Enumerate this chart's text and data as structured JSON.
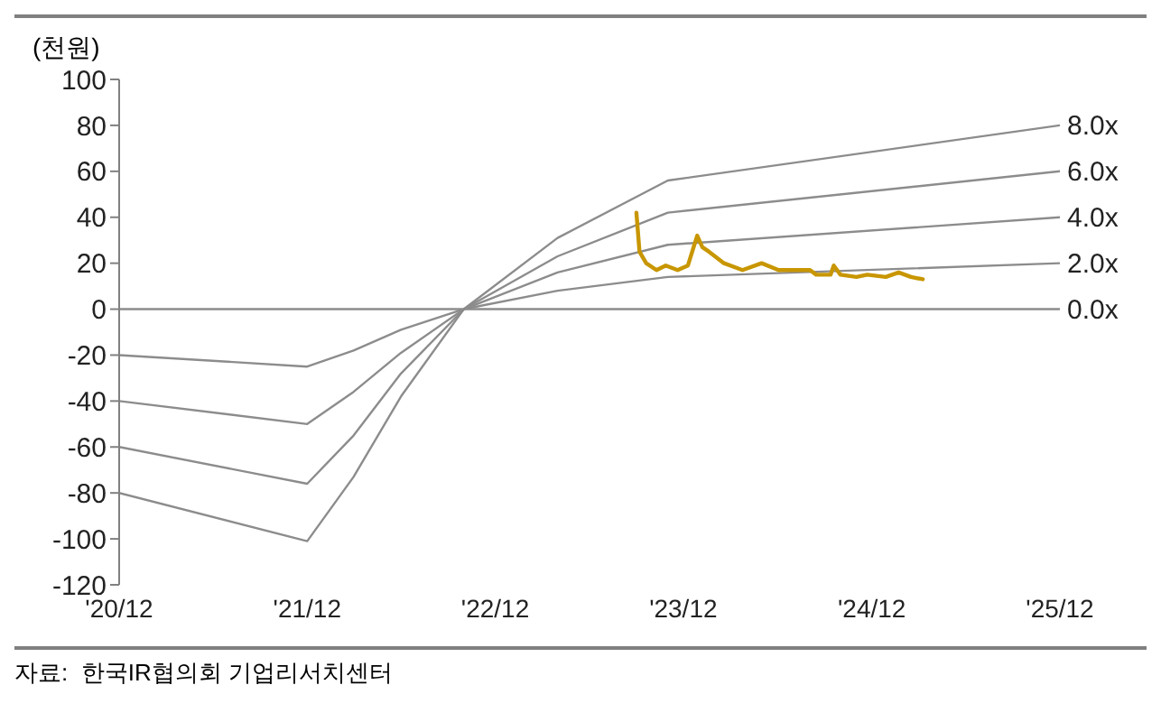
{
  "chart_data": {
    "type": "line",
    "ylabel": "(천원)",
    "xlim": [
      "2020-12",
      "2025-12"
    ],
    "xticks": [
      {
        "value": "2020-12",
        "label": "'20/12"
      },
      {
        "value": "2021-12",
        "label": "'21/12"
      },
      {
        "value": "2022-12",
        "label": "'22/12"
      },
      {
        "value": "2023-12",
        "label": "'23/12"
      },
      {
        "value": "2024-12",
        "label": "'24/12"
      },
      {
        "value": "2025-12",
        "label": "'25/12"
      }
    ],
    "ylim": [
      -120,
      100
    ],
    "yticks": [
      -120,
      -100,
      -80,
      -60,
      -40,
      -20,
      0,
      20,
      40,
      60,
      80,
      100
    ],
    "marker": "none",
    "line_style": "solid",
    "series": [
      {
        "name": "8.0x",
        "color": "#8c8c8c",
        "x": [
          "2020-12",
          "2021-12",
          "2022-03",
          "2022-06",
          "2022-10",
          "2023-04",
          "2023-11",
          "2025-12"
        ],
        "values": [
          -80,
          -101,
          -73,
          -38,
          0,
          31,
          56,
          80
        ]
      },
      {
        "name": "6.0x",
        "color": "#8c8c8c",
        "x": [
          "2020-12",
          "2021-12",
          "2022-03",
          "2022-06",
          "2022-10",
          "2023-04",
          "2023-11",
          "2025-12"
        ],
        "values": [
          -60,
          -76,
          -55,
          -28,
          0,
          23,
          42,
          60
        ]
      },
      {
        "name": "4.0x",
        "color": "#8c8c8c",
        "x": [
          "2020-12",
          "2021-12",
          "2022-03",
          "2022-06",
          "2022-10",
          "2023-04",
          "2023-11",
          "2025-12"
        ],
        "values": [
          -40,
          -50,
          -36,
          -19,
          0,
          16,
          28,
          40
        ]
      },
      {
        "name": "2.0x",
        "color": "#8c8c8c",
        "x": [
          "2020-12",
          "2021-12",
          "2022-03",
          "2022-06",
          "2022-10",
          "2023-04",
          "2023-11",
          "2025-12"
        ],
        "values": [
          -20,
          -25,
          -18,
          -9,
          0,
          8,
          14,
          20
        ]
      },
      {
        "name": "0.0x",
        "color": "#8c8c8c",
        "x": [
          "2020-12",
          "2025-12"
        ],
        "values": [
          0,
          0
        ]
      },
      {
        "color": "#c89600",
        "x": [
          "2023-09-01",
          "2023-09-07",
          "2023-09-20",
          "2023-10-10",
          "2023-10-28",
          "2023-11-20",
          "2023-12-10",
          "2023-12-28",
          "2024-01-07",
          "2024-01-20",
          "2024-02-18",
          "2024-03-25",
          "2024-05-01",
          "2024-06-03",
          "2024-07-10",
          "2024-08-03",
          "2024-08-15",
          "2024-09-12",
          "2024-09-18",
          "2024-10-01",
          "2024-11-01",
          "2024-11-22",
          "2024-12-28",
          "2025-01-22",
          "2025-02-15",
          "2025-03-10"
        ],
        "values": [
          42,
          25,
          20,
          17,
          19,
          17,
          19,
          32,
          27,
          25,
          20,
          17,
          20,
          17,
          17,
          17,
          15,
          15,
          19,
          15,
          14,
          15,
          14,
          16,
          14,
          13
        ]
      }
    ],
    "annotations": [
      "자료:  한국IR협의회 기업리서치센터"
    ]
  }
}
